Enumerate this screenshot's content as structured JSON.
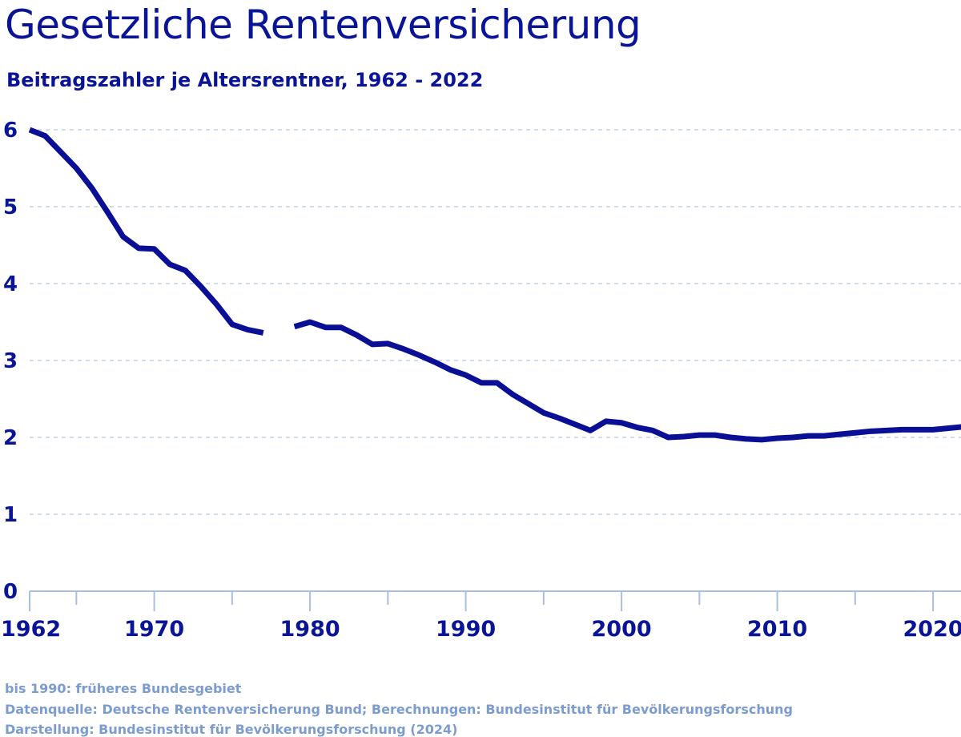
{
  "chart_data": {
    "type": "line",
    "title": "Gesetzliche Rentenversicherung",
    "subtitle": "Beitragszahler je Altersrentner, 1962 - 2022",
    "xlabel": "",
    "ylabel": "",
    "xlim": [
      1962,
      2022
    ],
    "ylim": [
      0,
      6
    ],
    "grid": true,
    "legend": "none",
    "x_tick_labels": [
      "1962",
      "1970",
      "1980",
      "1990",
      "2000",
      "2010",
      "2020"
    ],
    "y_tick_labels": [
      "0",
      "1",
      "2",
      "3",
      "4",
      "5",
      "6"
    ],
    "colors": {
      "line": "#0a0f96",
      "grid": "#b8c8e0",
      "axis": "#a9bfe0",
      "text": "#0a1496",
      "footnote": "#7c9cd0"
    },
    "series": [
      {
        "x": [
          1962,
          1963,
          1964,
          1965,
          1966,
          1967,
          1968,
          1969,
          1970,
          1971,
          1972,
          1973,
          1974,
          1975,
          1976,
          1977,
          1978,
          1979,
          1980,
          1981,
          1982,
          1983,
          1984,
          1985,
          1986,
          1987,
          1988,
          1989,
          1990,
          1991,
          1992,
          1993,
          1994,
          1995,
          1996,
          1997,
          1998,
          1999,
          2000,
          2001,
          2002,
          2003,
          2004,
          2005,
          2006,
          2007,
          2008,
          2009,
          2010,
          2011,
          2012,
          2013,
          2014,
          2015,
          2016,
          2017,
          2018,
          2019,
          2020,
          2021,
          2022
        ],
        "values": [
          6.0,
          5.92,
          5.71,
          5.5,
          5.24,
          4.93,
          4.61,
          4.46,
          4.45,
          4.25,
          4.17,
          3.96,
          3.73,
          3.47,
          3.4,
          3.36,
          null,
          3.44,
          3.5,
          3.43,
          3.43,
          3.33,
          3.21,
          3.22,
          3.15,
          3.07,
          2.98,
          2.88,
          2.81,
          2.71,
          2.71,
          2.56,
          2.44,
          2.32,
          2.25,
          2.17,
          2.09,
          2.21,
          2.19,
          2.13,
          2.09,
          2.0,
          2.01,
          2.03,
          2.03,
          2.0,
          1.98,
          1.97,
          1.99,
          2.0,
          2.02,
          2.02,
          2.04,
          2.06,
          2.08,
          2.09,
          2.1,
          2.1,
          2.1,
          2.12,
          2.14
        ]
      }
    ]
  },
  "footnotes": [
    "bis 1990: früheres Bundesgebiet",
    "Datenquelle: Deutsche Rentenversicherung Bund; Berechnungen: Bundesinstitut für Bevölkerungsforschung",
    "Darstellung: Bundesinstitut für Bevölkerungsforschung (2024)"
  ]
}
